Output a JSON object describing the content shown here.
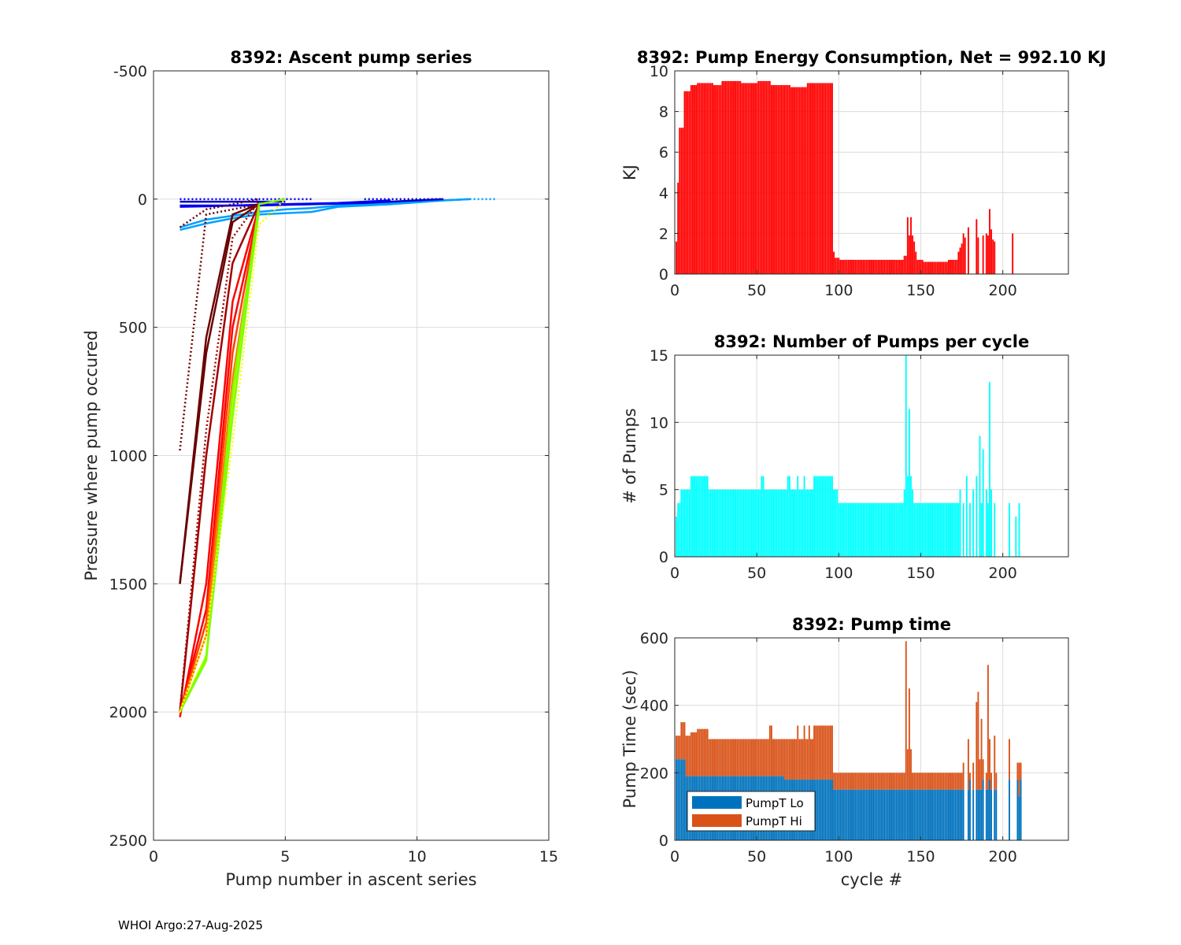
{
  "footer": "WHOI Argo:27-Aug-2025",
  "chart_data": [
    {
      "id": "ascent",
      "type": "line",
      "title": "8392: Ascent pump series",
      "xlabel": "Pump number in ascent series",
      "ylabel": "Pressure where pump occured",
      "xlim": [
        0,
        15
      ],
      "ylim": [
        -500,
        2500
      ],
      "y_reversed": true,
      "xticks": [
        "0",
        "5",
        "10",
        "15"
      ],
      "yticks": [
        "-500",
        "0",
        "500",
        "1000",
        "1500",
        "2000",
        "2500"
      ],
      "grid": true,
      "series": [
        {
          "color": "#00a0ff",
          "style": "solid",
          "points": [
            [
              1,
              110
            ],
            [
              2,
              80
            ],
            [
              3,
              65
            ],
            [
              4,
              50
            ],
            [
              5,
              40
            ],
            [
              6,
              35
            ],
            [
              7,
              25
            ],
            [
              8,
              20
            ],
            [
              10,
              10
            ],
            [
              12,
              0
            ]
          ]
        },
        {
          "color": "#00a0ff",
          "style": "solid",
          "points": [
            [
              1,
              120
            ],
            [
              2,
              95
            ],
            [
              3,
              75
            ],
            [
              4,
              60
            ],
            [
              6,
              50
            ],
            [
              7,
              30
            ],
            [
              9,
              20
            ],
            [
              11,
              5
            ],
            [
              12,
              0
            ]
          ]
        },
        {
          "color": "#00a0ff",
          "style": "dotted",
          "points": [
            [
              12,
              0
            ],
            [
              13,
              0
            ]
          ]
        },
        {
          "color": "#0000c8",
          "style": "solid",
          "points": [
            [
              1,
              10
            ],
            [
              2,
              10
            ],
            [
              3,
              10
            ],
            [
              4,
              10
            ],
            [
              5,
              10
            ]
          ]
        },
        {
          "color": "#0000c8",
          "style": "solid",
          "points": [
            [
              1,
              25
            ],
            [
              2,
              25
            ],
            [
              3,
              25
            ],
            [
              4,
              25
            ],
            [
              6,
              20
            ],
            [
              8,
              15
            ],
            [
              10,
              5
            ],
            [
              11,
              0
            ]
          ]
        },
        {
          "color": "#0000ff",
          "style": "solid",
          "points": [
            [
              1,
              30
            ],
            [
              2,
              28
            ],
            [
              3,
              25
            ],
            [
              4,
              22
            ],
            [
              7,
              15
            ],
            [
              9,
              5
            ]
          ]
        },
        {
          "color": "#0000ff",
          "style": "dotted",
          "points": [
            [
              1,
              0
            ],
            [
              3,
              0
            ],
            [
              6,
              0
            ]
          ]
        },
        {
          "color": "#0000c8",
          "style": "dotted",
          "points": [
            [
              8,
              0
            ],
            [
              11,
              0
            ]
          ]
        },
        {
          "color": "#6b0000",
          "style": "dotted",
          "points": [
            [
              1,
              980
            ],
            [
              2,
              60
            ],
            [
              3,
              40
            ],
            [
              4,
              20
            ],
            [
              5,
              0
            ]
          ]
        },
        {
          "color": "#6b0000",
          "style": "solid",
          "points": [
            [
              1,
              1500
            ],
            [
              2,
              540
            ],
            [
              3,
              60
            ],
            [
              4,
              20
            ]
          ]
        },
        {
          "color": "#6b0000",
          "style": "solid",
          "points": [
            [
              1,
              1500
            ],
            [
              2,
              600
            ],
            [
              3,
              90
            ],
            [
              4,
              20
            ]
          ]
        },
        {
          "color": "#6b0000",
          "style": "dotted",
          "points": [
            [
              1,
              110
            ],
            [
              2,
              40
            ],
            [
              4,
              0
            ]
          ]
        },
        {
          "color": "#a00000",
          "style": "solid",
          "points": [
            [
              1,
              2000
            ],
            [
              2,
              1000
            ],
            [
              3,
              250
            ],
            [
              4,
              20
            ]
          ]
        },
        {
          "color": "#a00000",
          "style": "dotted",
          "points": [
            [
              1,
              2000
            ],
            [
              2,
              900
            ],
            [
              3,
              150
            ],
            [
              4,
              10
            ]
          ]
        },
        {
          "color": "#ff0000",
          "style": "solid",
          "points": [
            [
              1,
              2020
            ],
            [
              2,
              1500
            ],
            [
              3,
              400
            ],
            [
              4,
              30
            ]
          ]
        },
        {
          "color": "#ff0000",
          "style": "solid",
          "points": [
            [
              1,
              2000
            ],
            [
              2,
              1600
            ],
            [
              3,
              500
            ],
            [
              4,
              40
            ]
          ]
        },
        {
          "color": "#ff4000",
          "style": "solid",
          "points": [
            [
              1,
              2000
            ],
            [
              2,
              1650
            ],
            [
              3,
              600
            ],
            [
              4,
              40
            ]
          ]
        },
        {
          "color": "#ff8000",
          "style": "solid",
          "points": [
            [
              1,
              2000
            ],
            [
              2,
              1700
            ],
            [
              3,
              700
            ],
            [
              4,
              50
            ]
          ]
        },
        {
          "color": "#c0ff00",
          "style": "solid",
          "points": [
            [
              1,
              2000
            ],
            [
              2,
              1780
            ],
            [
              3,
              800
            ],
            [
              4,
              50
            ]
          ]
        },
        {
          "color": "#80ff00",
          "style": "solid",
          "points": [
            [
              1,
              2000
            ],
            [
              2,
              1800
            ],
            [
              3,
              750
            ],
            [
              4,
              20
            ],
            [
              5,
              0
            ]
          ]
        },
        {
          "color": "#80ff00",
          "style": "solid",
          "points": [
            [
              1,
              2000
            ],
            [
              2,
              1790
            ],
            [
              3,
              850
            ],
            [
              4,
              30
            ]
          ]
        },
        {
          "color": "#ffff00",
          "style": "dotted",
          "points": [
            [
              1,
              2000
            ],
            [
              2,
              1700
            ],
            [
              3,
              950
            ],
            [
              4,
              100
            ],
            [
              5,
              0
            ]
          ]
        }
      ]
    },
    {
      "id": "energy",
      "type": "bar",
      "title": "8392: Pump Energy Consumption,  Net = 992.10 KJ",
      "xlabel": "",
      "ylabel": "KJ",
      "xlim": [
        0,
        240
      ],
      "ylim": [
        0,
        10
      ],
      "xticks": [
        "0",
        "50",
        "100",
        "150",
        "200"
      ],
      "yticks": [
        "0",
        "2",
        "4",
        "6",
        "8",
        "10"
      ],
      "grid": true,
      "color": "#ff0000",
      "segments_start_end_value": [
        [
          1,
          1,
          1.6
        ],
        [
          2,
          2,
          4.5
        ],
        [
          3,
          5,
          7.2
        ],
        [
          6,
          9,
          9.0
        ],
        [
          10,
          13,
          9.3
        ],
        [
          14,
          23,
          9.4
        ],
        [
          24,
          28,
          9.3
        ],
        [
          29,
          40,
          9.5
        ],
        [
          41,
          50,
          9.4
        ],
        [
          51,
          58,
          9.5
        ],
        [
          59,
          70,
          9.3
        ],
        [
          71,
          80,
          9.2
        ],
        [
          81,
          96,
          9.4
        ],
        [
          97,
          97,
          1.1
        ],
        [
          98,
          100,
          0.8
        ],
        [
          101,
          139,
          0.7
        ],
        [
          140,
          141,
          0.9
        ],
        [
          142,
          142,
          2.8
        ],
        [
          143,
          143,
          1.9
        ],
        [
          144,
          144,
          2.8
        ],
        [
          145,
          145,
          1.9
        ],
        [
          146,
          146,
          1.6
        ],
        [
          147,
          147,
          1.1
        ],
        [
          148,
          151,
          0.7
        ],
        [
          152,
          166,
          0.6
        ],
        [
          167,
          172,
          0.7
        ],
        [
          173,
          173,
          1.1
        ],
        [
          174,
          174,
          1.3
        ],
        [
          175,
          175,
          1.5
        ],
        [
          176,
          176,
          2.0
        ],
        [
          177,
          177,
          1.8
        ],
        [
          179,
          179,
          2.3
        ],
        [
          184,
          184,
          2.7
        ],
        [
          185,
          185,
          1.8
        ],
        [
          188,
          188,
          1.9
        ],
        [
          190,
          190,
          2.0
        ],
        [
          191,
          191,
          1.9
        ],
        [
          192,
          192,
          3.2
        ],
        [
          193,
          193,
          2.2
        ],
        [
          194,
          194,
          1.7
        ],
        [
          195,
          195,
          1.6
        ],
        [
          206,
          206,
          2.0
        ]
      ]
    },
    {
      "id": "pumps",
      "type": "bar",
      "title": "8392: Number of Pumps per cycle",
      "xlabel": "",
      "ylabel": "# of Pumps",
      "xlim": [
        0,
        240
      ],
      "ylim": [
        0,
        15
      ],
      "xticks": [
        "0",
        "50",
        "100",
        "150",
        "200"
      ],
      "yticks": [
        "0",
        "5",
        "10",
        "15"
      ],
      "grid": true,
      "color": "#00ffff",
      "segments_start_end_value": [
        [
          1,
          1,
          3
        ],
        [
          2,
          3,
          4
        ],
        [
          4,
          9,
          5
        ],
        [
          10,
          20,
          6
        ],
        [
          21,
          52,
          5
        ],
        [
          53,
          54,
          6
        ],
        [
          55,
          68,
          5
        ],
        [
          69,
          70,
          6
        ],
        [
          71,
          74,
          5
        ],
        [
          75,
          75,
          6
        ],
        [
          76,
          78,
          5
        ],
        [
          79,
          79,
          6
        ],
        [
          80,
          84,
          5
        ],
        [
          85,
          96,
          6
        ],
        [
          97,
          99,
          5
        ],
        [
          100,
          139,
          4
        ],
        [
          140,
          140,
          5
        ],
        [
          141,
          141,
          15
        ],
        [
          142,
          142,
          6
        ],
        [
          143,
          143,
          11
        ],
        [
          144,
          144,
          6
        ],
        [
          145,
          145,
          5
        ],
        [
          146,
          173,
          4
        ],
        [
          174,
          174,
          5
        ],
        [
          176,
          176,
          4
        ],
        [
          178,
          178,
          6
        ],
        [
          180,
          180,
          4
        ],
        [
          182,
          182,
          5
        ],
        [
          184,
          184,
          6
        ],
        [
          186,
          186,
          9
        ],
        [
          187,
          187,
          4
        ],
        [
          188,
          188,
          8
        ],
        [
          190,
          190,
          5
        ],
        [
          191,
          191,
          4
        ],
        [
          192,
          192,
          13
        ],
        [
          193,
          193,
          5
        ],
        [
          195,
          195,
          4
        ],
        [
          204,
          204,
          4
        ],
        [
          208,
          208,
          3
        ],
        [
          210,
          210,
          4
        ]
      ]
    },
    {
      "id": "pumptime",
      "type": "stacked-bar",
      "title": "8392: Pump time",
      "xlabel": "cycle #",
      "ylabel": "Pump Time (sec)",
      "xlim": [
        0,
        240
      ],
      "ylim": [
        0,
        600
      ],
      "xticks": [
        "0",
        "50",
        "100",
        "150",
        "200"
      ],
      "yticks": [
        "0",
        "200",
        "400",
        "600"
      ],
      "grid": true,
      "legend": {
        "position": "bottom-left",
        "entries": [
          {
            "label": "PumpT Lo",
            "color": "#0072bd"
          },
          {
            "label": "PumpT Hi",
            "color": "#d95319"
          }
        ]
      },
      "segments_start_end_lo_total": [
        [
          1,
          3,
          240,
          310
        ],
        [
          4,
          6,
          240,
          350
        ],
        [
          7,
          9,
          190,
          310
        ],
        [
          10,
          13,
          190,
          320
        ],
        [
          14,
          20,
          190,
          330
        ],
        [
          21,
          57,
          190,
          300
        ],
        [
          58,
          59,
          190,
          340
        ],
        [
          60,
          66,
          190,
          300
        ],
        [
          67,
          74,
          180,
          300
        ],
        [
          75,
          75,
          180,
          340
        ],
        [
          76,
          78,
          180,
          300
        ],
        [
          79,
          79,
          180,
          340
        ],
        [
          80,
          81,
          180,
          300
        ],
        [
          82,
          82,
          180,
          340
        ],
        [
          83,
          84,
          180,
          300
        ],
        [
          85,
          96,
          180,
          340
        ],
        [
          97,
          140,
          150,
          200
        ],
        [
          141,
          141,
          150,
          590
        ],
        [
          142,
          142,
          150,
          270
        ],
        [
          143,
          143,
          150,
          450
        ],
        [
          144,
          144,
          150,
          270
        ],
        [
          145,
          175,
          150,
          200
        ],
        [
          176,
          176,
          150,
          230
        ],
        [
          179,
          179,
          150,
          300
        ],
        [
          180,
          180,
          180,
          200
        ],
        [
          182,
          182,
          150,
          230
        ],
        [
          184,
          184,
          150,
          410
        ],
        [
          185,
          185,
          150,
          440
        ],
        [
          186,
          186,
          150,
          240
        ],
        [
          187,
          187,
          150,
          360
        ],
        [
          188,
          188,
          180,
          240
        ],
        [
          190,
          190,
          150,
          200
        ],
        [
          191,
          191,
          150,
          520
        ],
        [
          192,
          192,
          180,
          300
        ],
        [
          193,
          193,
          150,
          200
        ],
        [
          195,
          195,
          150,
          310
        ],
        [
          196,
          196,
          150,
          200
        ],
        [
          204,
          204,
          180,
          300
        ],
        [
          209,
          209,
          180,
          230
        ],
        [
          210,
          210,
          130,
          230
        ],
        [
          211,
          211,
          180,
          230
        ]
      ]
    }
  ]
}
